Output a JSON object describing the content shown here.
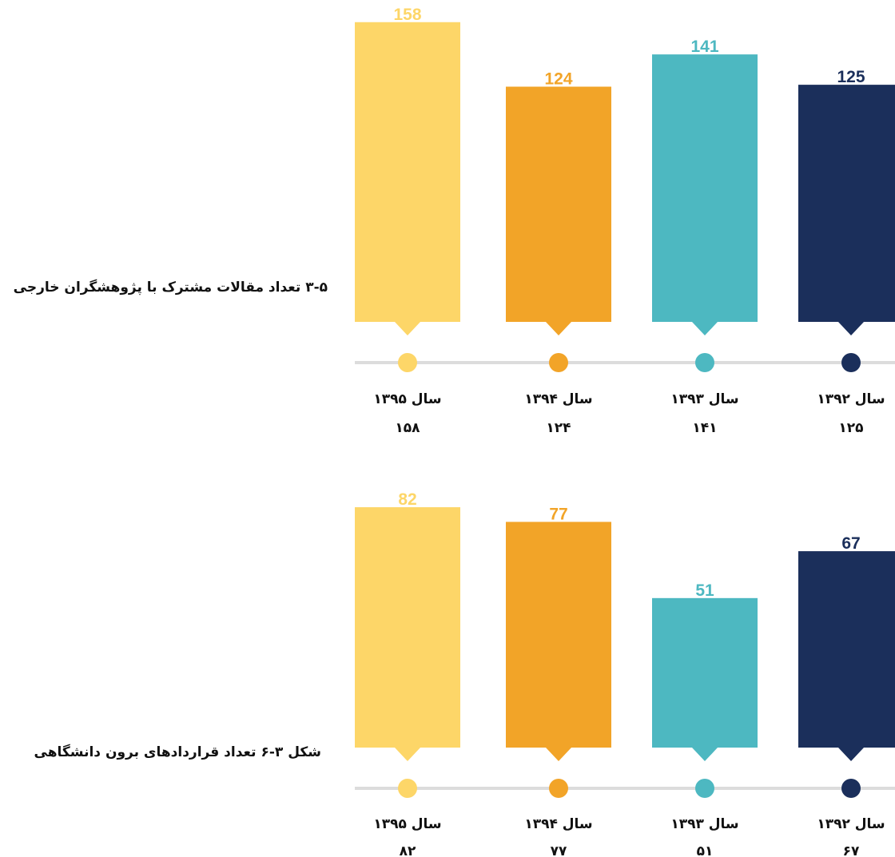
{
  "colors": {
    "year_1392": "#1b2f5b",
    "year_1393": "#4db8c1",
    "year_1394": "#f2a428",
    "year_1395": "#fdd668",
    "axis_line": "#dcdcdc"
  },
  "chart_data": [
    {
      "type": "bar",
      "title": "۳-۵ تعداد مقالات مشترک با پژوهشگران خارجی",
      "categories": [
        "سال ۱۳۹۵",
        "سال ۱۳۹۴",
        "سال ۱۳۹۳",
        "سال ۱۳۹۲"
      ],
      "values": [
        158,
        124,
        141,
        125
      ],
      "value_labels_latin": [
        "158",
        "124",
        "141",
        "125"
      ],
      "value_labels_persian": [
        "۱۵۸",
        "۱۲۴",
        "۱۴۱",
        "۱۲۵"
      ],
      "bar_colors": [
        "#fdd668",
        "#f2a428",
        "#4db8c1",
        "#1b2f5b"
      ]
    },
    {
      "type": "bar",
      "title": "شکل ۳-۶ تعداد قراردادهای برون دانشگاهی",
      "categories": [
        "سال ۱۳۹۵",
        "سال ۱۳۹۴",
        "سال ۱۳۹۳",
        "سال ۱۳۹۲"
      ],
      "values": [
        82,
        77,
        51,
        67
      ],
      "value_labels_latin": [
        "82",
        "77",
        "51",
        "67"
      ],
      "value_labels_persian": [
        "۸۲",
        "۷۷",
        "۵۱",
        "۶۷"
      ],
      "bar_colors": [
        "#fdd668",
        "#f2a428",
        "#4db8c1",
        "#1b2f5b"
      ]
    }
  ]
}
